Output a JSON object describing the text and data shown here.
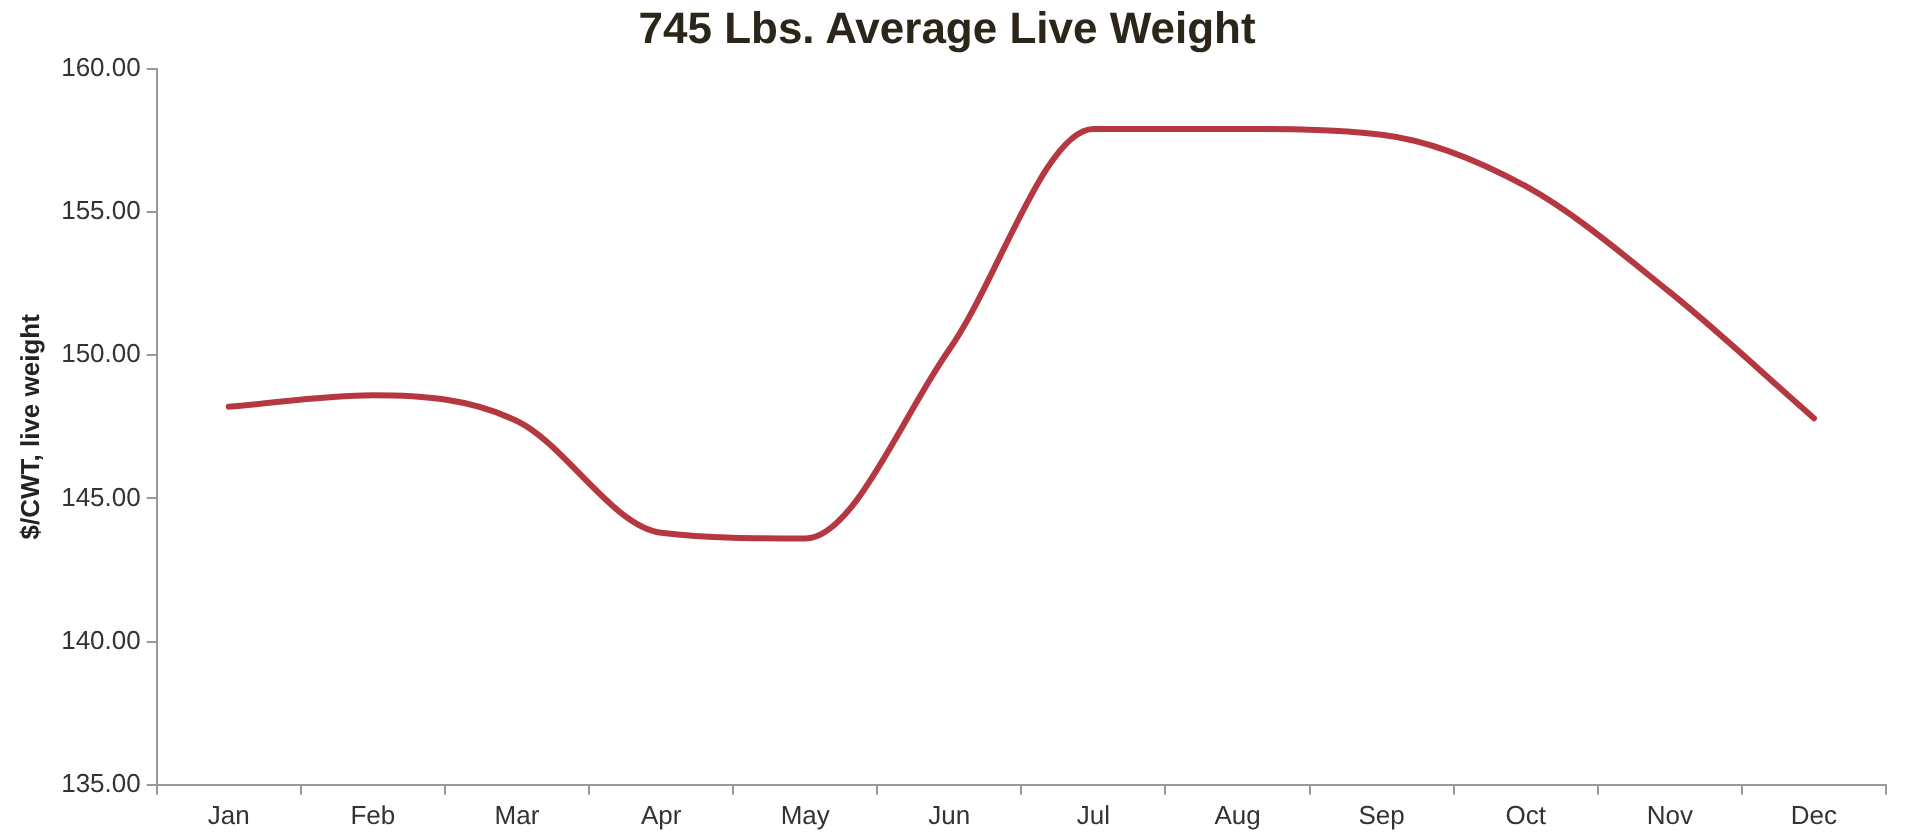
{
  "chart_data": {
    "type": "line",
    "title": "745 Lbs. Average Live Weight",
    "ylabel": "$/CWT, live weight",
    "categories": [
      "Jan",
      "Feb",
      "Mar",
      "Apr",
      "May",
      "Jun",
      "Jul",
      "Aug",
      "Sep",
      "Oct",
      "Nov",
      "Dec"
    ],
    "series": [
      {
        "color": "#b5373f",
        "values": [
          148.2,
          148.6,
          147.7,
          143.8,
          143.6,
          150.2,
          157.9,
          157.9,
          157.7,
          155.9,
          152.2,
          147.8
        ]
      }
    ],
    "ylim": [
      135,
      160
    ],
    "yticks": [
      {
        "value": 135,
        "label": "135.00"
      },
      {
        "value": 140,
        "label": "140.00"
      },
      {
        "value": 145,
        "label": "145.00"
      },
      {
        "value": 150,
        "label": "150.00"
      },
      {
        "value": 155,
        "label": "155.00"
      },
      {
        "value": 160,
        "label": "160.00"
      }
    ],
    "grid": false,
    "legend": false,
    "marker": "none",
    "line_style": "solid"
  }
}
